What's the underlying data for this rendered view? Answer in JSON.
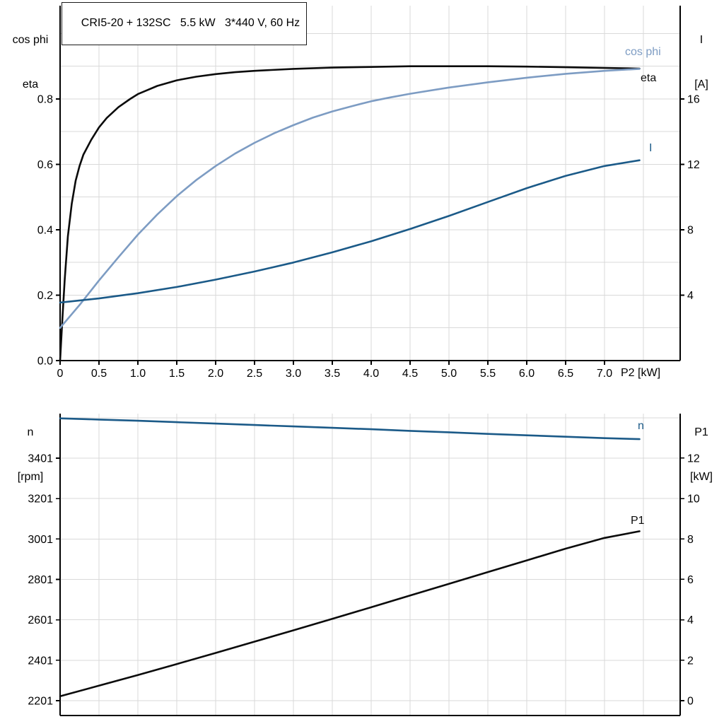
{
  "title": "CRI5-20 + 132SC   5.5 kW   3*440 V, 60 Hz",
  "corner_labels": {
    "top_left": [
      "cos phi",
      "eta"
    ],
    "top_right": [
      "I",
      "[A]"
    ],
    "bottom_left": [
      "n",
      "[rpm]"
    ],
    "bottom_right": [
      "P1",
      "[kW]"
    ]
  },
  "colors": {
    "grid": "#d9d9d9",
    "axis": "#000000",
    "black": "#0b0b0b",
    "light_blue": "#7d9cc3",
    "dark_blue": "#1b5a88"
  },
  "chart_data": [
    {
      "type": "line",
      "name": "motor-performance-top",
      "title": "CRI5-20 + 132SC   5.5 kW   3*440 V, 60 Hz",
      "x_axis": {
        "label": "P2 [kW]",
        "min": 0,
        "max": 7.973,
        "ticks": [
          0,
          0.5,
          1,
          1.5,
          2,
          2.5,
          3,
          3.5,
          4,
          4.5,
          5,
          5.5,
          6,
          6.5,
          7
        ],
        "tick_labels": [
          "0",
          "0.5",
          "1.0",
          "1.5",
          "2.0",
          "2.5",
          "3.0",
          "3.5",
          "4.0",
          "4.5",
          "5.0",
          "5.5",
          "6.0",
          "6.5",
          "7.0"
        ],
        "grid": [
          0.5,
          1,
          1.5,
          2,
          2.5,
          3,
          3.5,
          4,
          4.5,
          5,
          5.5,
          6,
          6.5,
          7,
          7.5
        ],
        "show_tick_labels": true
      },
      "y_left": {
        "labels": [
          "cos phi",
          "eta"
        ],
        "min": 0,
        "max": 1.0854,
        "ticks": [
          0,
          0.2,
          0.4,
          0.6,
          0.8
        ],
        "tick_labels": [
          "0.0",
          "0.2",
          "0.4",
          "0.6",
          "0.8"
        ],
        "grid": [
          0.1,
          0.2,
          0.3,
          0.4,
          0.5,
          0.6,
          0.7,
          0.8,
          0.9,
          1.0
        ]
      },
      "y_right": {
        "labels": [
          "I",
          "[A]"
        ],
        "min": 0,
        "max": 21.71,
        "ticks": [
          4,
          8,
          12,
          16
        ],
        "tick_labels": [
          "4",
          "8",
          "12",
          "16"
        ]
      },
      "series": [
        {
          "name": "eta",
          "label": "eta",
          "axis": "left",
          "color_key": "black",
          "points": [
            [
              0,
              0
            ],
            [
              0.03,
              0.13
            ],
            [
              0.06,
              0.25
            ],
            [
              0.1,
              0.38
            ],
            [
              0.15,
              0.48
            ],
            [
              0.2,
              0.55
            ],
            [
              0.25,
              0.595
            ],
            [
              0.3,
              0.63
            ],
            [
              0.4,
              0.675
            ],
            [
              0.5,
              0.713
            ],
            [
              0.6,
              0.742
            ],
            [
              0.75,
              0.775
            ],
            [
              0.9,
              0.8
            ],
            [
              1.0,
              0.815
            ],
            [
              1.25,
              0.84
            ],
            [
              1.5,
              0.857
            ],
            [
              1.75,
              0.868
            ],
            [
              2.0,
              0.876
            ],
            [
              2.25,
              0.882
            ],
            [
              2.5,
              0.886
            ],
            [
              3.0,
              0.892
            ],
            [
              3.5,
              0.896
            ],
            [
              4.0,
              0.898
            ],
            [
              4.5,
              0.9
            ],
            [
              5.0,
              0.9
            ],
            [
              5.5,
              0.9
            ],
            [
              6.0,
              0.899
            ],
            [
              6.5,
              0.897
            ],
            [
              7.0,
              0.895
            ],
            [
              7.45,
              0.893
            ]
          ]
        },
        {
          "name": "cos_phi",
          "label": "cos phi",
          "axis": "left",
          "color_key": "light_blue",
          "points": [
            [
              0,
              0.1
            ],
            [
              0.1,
              0.128
            ],
            [
              0.25,
              0.17
            ],
            [
              0.5,
              0.245
            ],
            [
              0.75,
              0.316
            ],
            [
              1.0,
              0.385
            ],
            [
              1.25,
              0.447
            ],
            [
              1.5,
              0.503
            ],
            [
              1.75,
              0.552
            ],
            [
              2.0,
              0.595
            ],
            [
              2.25,
              0.633
            ],
            [
              2.5,
              0.666
            ],
            [
              2.75,
              0.695
            ],
            [
              3.0,
              0.72
            ],
            [
              3.25,
              0.743
            ],
            [
              3.5,
              0.762
            ],
            [
              3.75,
              0.778
            ],
            [
              4.0,
              0.793
            ],
            [
              4.25,
              0.805
            ],
            [
              4.5,
              0.816
            ],
            [
              5.0,
              0.835
            ],
            [
              5.5,
              0.851
            ],
            [
              6.0,
              0.865
            ],
            [
              6.5,
              0.877
            ],
            [
              7.0,
              0.886
            ],
            [
              7.45,
              0.892
            ]
          ]
        },
        {
          "name": "current",
          "label": "I",
          "axis": "right",
          "color_key": "dark_blue",
          "points": [
            [
              0,
              3.55
            ],
            [
              0.5,
              3.8
            ],
            [
              1.0,
              4.12
            ],
            [
              1.5,
              4.5
            ],
            [
              2.0,
              4.95
            ],
            [
              2.5,
              5.45
            ],
            [
              3.0,
              6.0
            ],
            [
              3.5,
              6.62
            ],
            [
              4.0,
              7.3
            ],
            [
              4.5,
              8.05
            ],
            [
              5.0,
              8.85
            ],
            [
              5.5,
              9.7
            ],
            [
              6.0,
              10.55
            ],
            [
              6.5,
              11.3
            ],
            [
              7.0,
              11.9
            ],
            [
              7.45,
              12.25
            ]
          ]
        }
      ]
    },
    {
      "type": "line",
      "name": "motor-performance-bottom",
      "x_axis": {
        "label": "",
        "min": 0,
        "max": 7.973,
        "ticks": [],
        "tick_labels": [],
        "grid": [
          0.5,
          1,
          1.5,
          2,
          2.5,
          3,
          3.5,
          4,
          4.5,
          5,
          5.5,
          6,
          6.5,
          7,
          7.5
        ],
        "show_tick_labels": false
      },
      "y_left": {
        "labels": [
          "n",
          "[rpm]"
        ],
        "min": 2127.5,
        "max": 3621.4,
        "ticks": [
          2201,
          2401,
          2601,
          2801,
          3001,
          3201,
          3401
        ],
        "tick_labels": [
          "2201",
          "2401",
          "2601",
          "2801",
          "3001",
          "3201",
          "3401"
        ],
        "grid": [
          2201,
          2401,
          2601,
          2801,
          3001,
          3201,
          3401,
          3601
        ]
      },
      "y_right": {
        "labels": [
          "P1",
          "[kW]"
        ],
        "min": -0.735,
        "max": 14.2,
        "ticks": [
          0,
          2,
          4,
          6,
          8,
          10,
          12
        ],
        "tick_labels": [
          "0",
          "2",
          "4",
          "6",
          "8",
          "10",
          "12"
        ]
      },
      "series": [
        {
          "name": "speed",
          "label": "n",
          "axis": "left",
          "color_key": "dark_blue",
          "points": [
            [
              0,
              3598
            ],
            [
              0.5,
              3592
            ],
            [
              1.0,
              3586
            ],
            [
              1.5,
              3579
            ],
            [
              2.0,
              3572
            ],
            [
              2.5,
              3565
            ],
            [
              3.0,
              3558
            ],
            [
              3.5,
              3551
            ],
            [
              4.0,
              3544
            ],
            [
              4.5,
              3536
            ],
            [
              5.0,
              3529
            ],
            [
              5.5,
              3521
            ],
            [
              6.0,
              3514
            ],
            [
              6.5,
              3507
            ],
            [
              7.0,
              3500
            ],
            [
              7.45,
              3495
            ]
          ]
        },
        {
          "name": "input_power",
          "label": "P1",
          "axis": "right",
          "color_key": "black",
          "points": [
            [
              0,
              0.22
            ],
            [
              0.5,
              0.74
            ],
            [
              1.0,
              1.27
            ],
            [
              1.5,
              1.81
            ],
            [
              2.0,
              2.36
            ],
            [
              2.5,
              2.92
            ],
            [
              3.0,
              3.48
            ],
            [
              3.5,
              4.05
            ],
            [
              4.0,
              4.62
            ],
            [
              4.5,
              5.2
            ],
            [
              5.0,
              5.78
            ],
            [
              5.5,
              6.36
            ],
            [
              6.0,
              6.94
            ],
            [
              6.5,
              7.52
            ],
            [
              7.0,
              8.05
            ],
            [
              7.45,
              8.38
            ]
          ]
        }
      ]
    }
  ]
}
